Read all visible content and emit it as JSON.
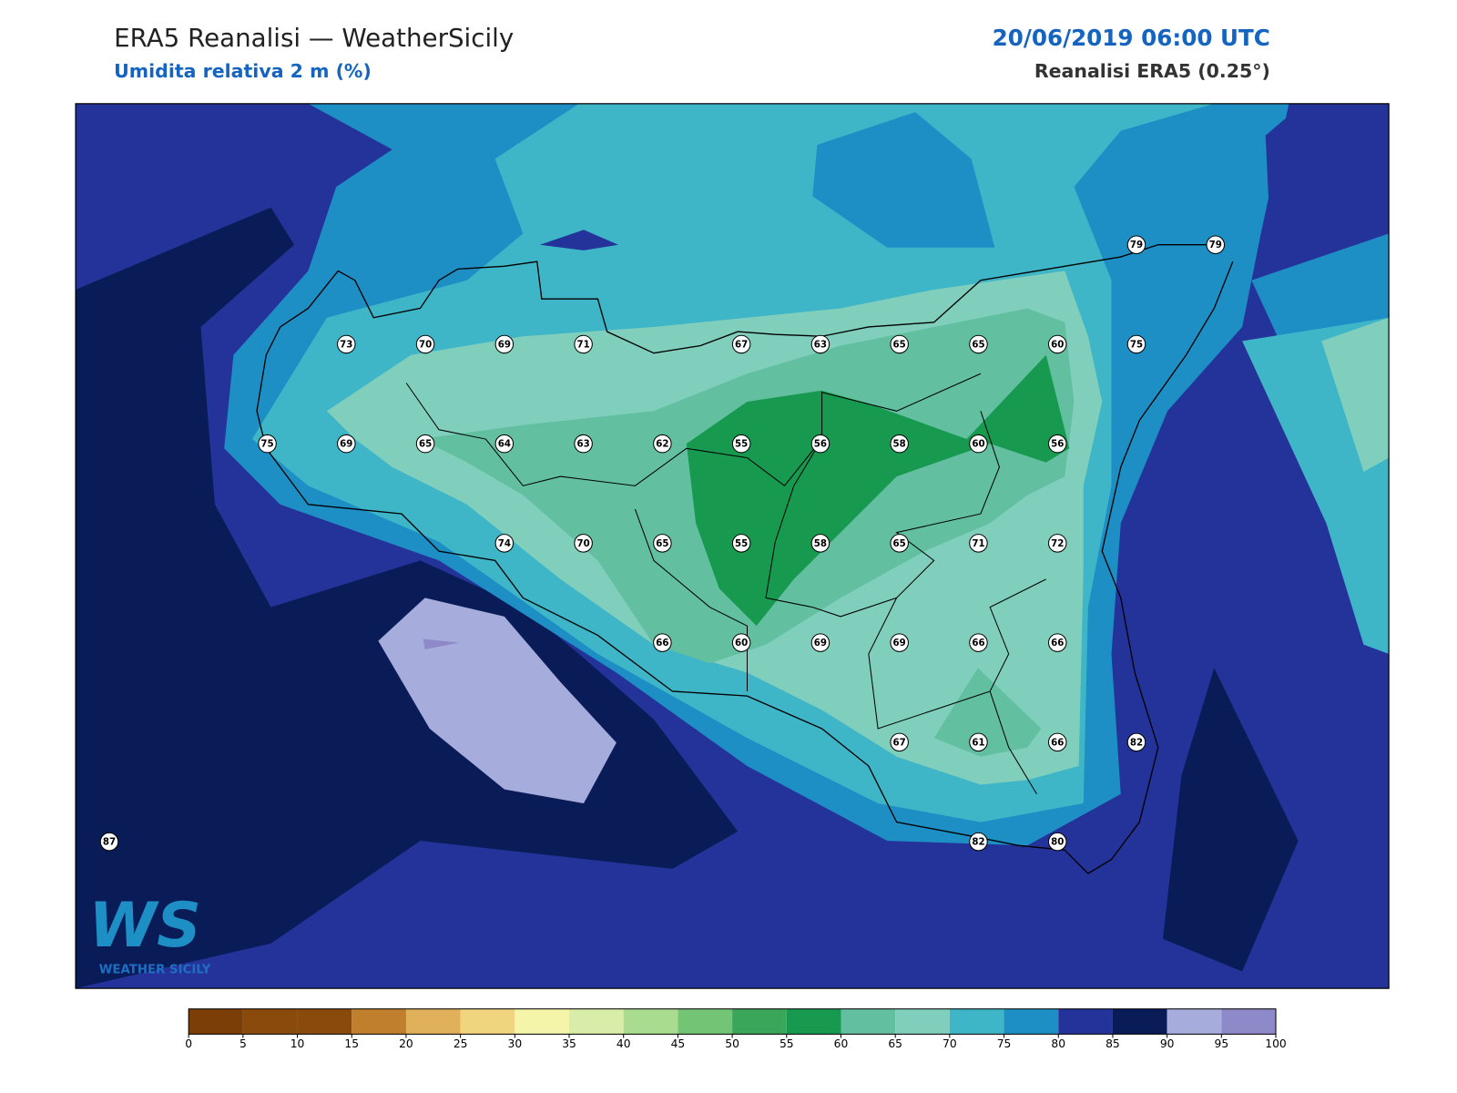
{
  "header": {
    "title": "ERA5 Reanalisi — WeatherSicily",
    "subtitle": "Umidita relativa 2 m (%)",
    "valid_time": "20/06/2019 06:00 UTC",
    "source": "Reanalisi ERA5 (0.25°)"
  },
  "stations": [
    79,
    79,
    73,
    70,
    69,
    71,
    67,
    63,
    65,
    65,
    60,
    75,
    75,
    69,
    65,
    64,
    63,
    62,
    55,
    56,
    58,
    60,
    56,
    74,
    70,
    65,
    55,
    58,
    65,
    71,
    72,
    66,
    60,
    69,
    69,
    66,
    66,
    67,
    61,
    66,
    82,
    87,
    82,
    80
  ],
  "colorbar": {
    "ticks": [
      0,
      5,
      10,
      15,
      20,
      25,
      30,
      35,
      40,
      45,
      50,
      55,
      60,
      65,
      70,
      75,
      80,
      85,
      90,
      95,
      100
    ],
    "colors": [
      "#7a3e06",
      "#8a4a0c",
      "#8a4a0c",
      "#c07f2c",
      "#e0b05a",
      "#f0d47e",
      "#f5f5aa",
      "#d8eea8",
      "#a9dc8f",
      "#74c476",
      "#3aa65a",
      "#179a50",
      "#62bfa0",
      "#80cfbc",
      "#3fb5c8",
      "#1d8fc4",
      "#24339a",
      "#0a1c58",
      "#a6acdc",
      "#8e89c9"
    ]
  },
  "logo": {
    "mark": "WS",
    "text": "WEATHER SICILY"
  }
}
